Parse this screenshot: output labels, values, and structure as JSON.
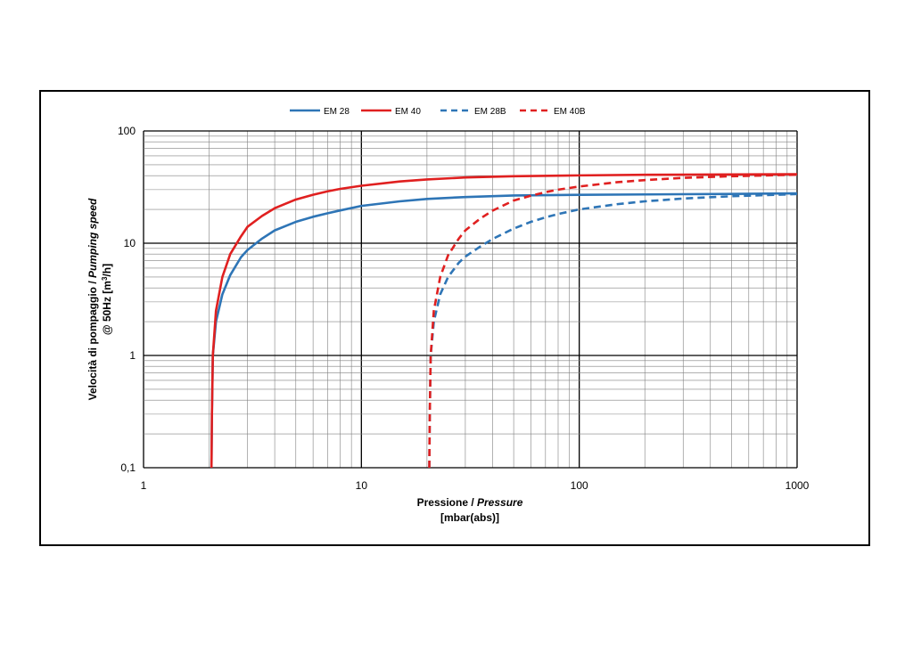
{
  "chart_data": {
    "type": "line",
    "xscale": "log",
    "yscale": "log",
    "xlim": [
      1,
      1000
    ],
    "ylim": [
      0.1,
      100
    ],
    "grid": true,
    "legend_position": "top-center",
    "xlabel_line1_normal": "Pressione / ",
    "xlabel_line1_italic": "Pressure",
    "xlabel_line2": "[mbar(abs)]",
    "ylabel_line1_normal": "Velocità di pompaggio / ",
    "ylabel_line1_italic": "Pumping speed",
    "ylabel_line2_pre": "@ 50Hz [m",
    "ylabel_line2_sup": "3",
    "ylabel_line2_post": "/h]",
    "x_ticks": [
      {
        "value": 1,
        "label": "1"
      },
      {
        "value": 10,
        "label": "10"
      },
      {
        "value": 100,
        "label": "100"
      },
      {
        "value": 1000,
        "label": "1000"
      }
    ],
    "y_ticks": [
      {
        "value": 0.1,
        "label": "0,1"
      },
      {
        "value": 1,
        "label": "1"
      },
      {
        "value": 10,
        "label": "10"
      },
      {
        "value": 100,
        "label": "100"
      }
    ],
    "series": [
      {
        "name": "EM 28",
        "color": "#2e75b6",
        "dash": "solid",
        "points": [
          [
            2.05,
            0.1
          ],
          [
            2.06,
            0.3
          ],
          [
            2.08,
            1
          ],
          [
            2.15,
            2
          ],
          [
            2.3,
            3.5
          ],
          [
            2.5,
            5.2
          ],
          [
            2.8,
            7.5
          ],
          [
            3,
            8.7
          ],
          [
            3.5,
            11
          ],
          [
            4,
            13
          ],
          [
            5,
            15.5
          ],
          [
            6,
            17.2
          ],
          [
            7,
            18.5
          ],
          [
            8,
            19.6
          ],
          [
            10,
            21.5
          ],
          [
            15,
            23.6
          ],
          [
            20,
            24.8
          ],
          [
            30,
            25.8
          ],
          [
            50,
            26.6
          ],
          [
            100,
            27
          ],
          [
            200,
            27.2
          ],
          [
            500,
            27.5
          ],
          [
            1000,
            27.8
          ]
        ]
      },
      {
        "name": "EM 40",
        "color": "#e02020",
        "dash": "solid",
        "points": [
          [
            2.05,
            0.1
          ],
          [
            2.06,
            0.3
          ],
          [
            2.08,
            1
          ],
          [
            2.15,
            2.5
          ],
          [
            2.3,
            5
          ],
          [
            2.5,
            8
          ],
          [
            2.8,
            11.5
          ],
          [
            3,
            14
          ],
          [
            3.5,
            17.5
          ],
          [
            4,
            20.5
          ],
          [
            5,
            24.5
          ],
          [
            6,
            27
          ],
          [
            7,
            29
          ],
          [
            8,
            30.5
          ],
          [
            10,
            32.5
          ],
          [
            15,
            35.5
          ],
          [
            20,
            37
          ],
          [
            30,
            38.5
          ],
          [
            50,
            39.5
          ],
          [
            100,
            40.2
          ],
          [
            200,
            40.7
          ],
          [
            500,
            41
          ],
          [
            1000,
            41.2
          ]
        ]
      },
      {
        "name": "EM 28B",
        "color": "#2e75b6",
        "dash": "dashed",
        "points": [
          [
            20.5,
            0.1
          ],
          [
            20.6,
            0.3
          ],
          [
            20.8,
            1
          ],
          [
            21.5,
            2
          ],
          [
            23,
            3.5
          ],
          [
            25,
            5
          ],
          [
            28,
            6.7
          ],
          [
            30,
            7.6
          ],
          [
            35,
            9.3
          ],
          [
            40,
            10.9
          ],
          [
            50,
            13.5
          ],
          [
            60,
            15.5
          ],
          [
            70,
            17
          ],
          [
            80,
            18.2
          ],
          [
            100,
            20
          ],
          [
            150,
            22.3
          ],
          [
            200,
            23.6
          ],
          [
            300,
            25
          ],
          [
            500,
            26.2
          ],
          [
            1000,
            27.4
          ]
        ]
      },
      {
        "name": "EM 40B",
        "color": "#e02020",
        "dash": "dashed",
        "points": [
          [
            20.5,
            0.1
          ],
          [
            20.6,
            0.3
          ],
          [
            20.8,
            1
          ],
          [
            21.5,
            2.5
          ],
          [
            23,
            5
          ],
          [
            25,
            7.8
          ],
          [
            28,
            11
          ],
          [
            30,
            13
          ],
          [
            35,
            16.5
          ],
          [
            40,
            19.5
          ],
          [
            50,
            24
          ],
          [
            60,
            26.5
          ],
          [
            70,
            28.5
          ],
          [
            80,
            30
          ],
          [
            100,
            32
          ],
          [
            150,
            35
          ],
          [
            200,
            36.5
          ],
          [
            300,
            38.2
          ],
          [
            500,
            39.5
          ],
          [
            1000,
            40.8
          ]
        ]
      }
    ]
  }
}
